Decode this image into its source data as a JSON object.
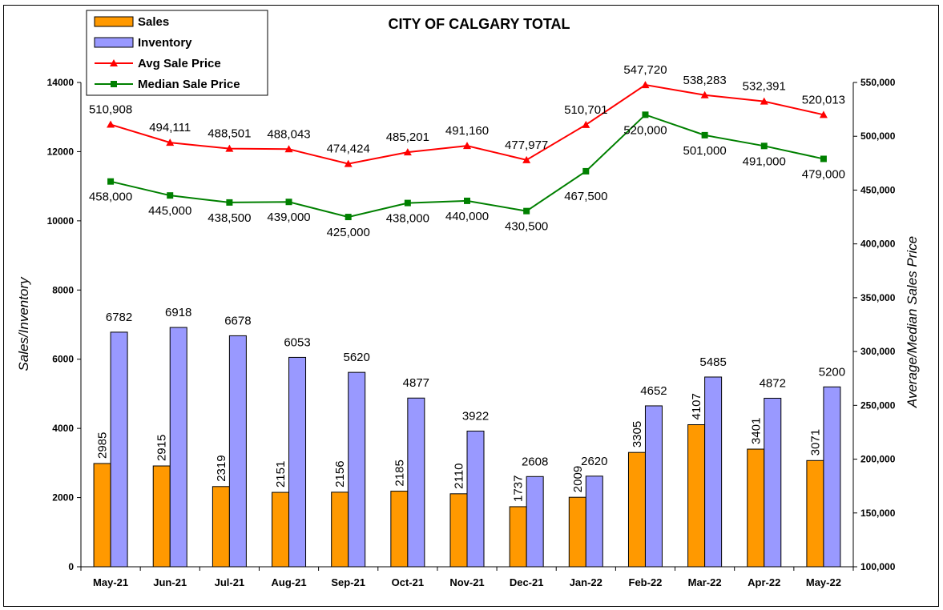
{
  "chart_data": {
    "type": "bar",
    "title": "CITY OF CALGARY TOTAL",
    "categories": [
      "May-21",
      "Jun-21",
      "Jul-21",
      "Aug-21",
      "Sep-21",
      "Oct-21",
      "Nov-21",
      "Dec-21",
      "Jan-22",
      "Feb-22",
      "Mar-22",
      "Apr-22",
      "May-22"
    ],
    "ylabel_left": "Sales/Inventory",
    "ylabel_right": "Average/Median Sales Price",
    "ylim_left": [
      0,
      14000
    ],
    "ylim_right": [
      100000,
      550000
    ],
    "yticks_left": [
      "0",
      "2000",
      "4000",
      "6000",
      "8000",
      "10000",
      "12000",
      "14000"
    ],
    "yticks_right": [
      "100,000",
      "150,000",
      "200,000",
      "250,000",
      "300,000",
      "350,000",
      "400,000",
      "450,000",
      "500,000",
      "550,000"
    ],
    "legend_position": "top-left",
    "grid": false,
    "series": [
      {
        "name": "Sales",
        "type": "bar",
        "axis": "left",
        "color": "#ff9900",
        "values": [
          2985,
          2915,
          2319,
          2151,
          2156,
          2185,
          2110,
          1737,
          2009,
          3305,
          4107,
          3401,
          3071
        ],
        "labels": [
          "2985",
          "2915",
          "2319",
          "2151",
          "2156",
          "2185",
          "2110",
          "1737",
          "2009",
          "3305",
          "4107",
          "3401",
          "3071"
        ]
      },
      {
        "name": "Inventory",
        "type": "bar",
        "axis": "left",
        "color": "#9999ff",
        "values": [
          6782,
          6918,
          6678,
          6053,
          5620,
          4877,
          3922,
          2608,
          2620,
          4652,
          5485,
          4872,
          5200
        ],
        "labels": [
          "6782",
          "6918",
          "6678",
          "6053",
          "5620",
          "4877",
          "3922",
          "2608",
          "2620",
          "4652",
          "5485",
          "4872",
          "5200"
        ]
      },
      {
        "name": "Avg Sale Price",
        "type": "line",
        "axis": "right",
        "color": "#ff0000",
        "marker": "triangle",
        "values": [
          510908,
          494111,
          488501,
          488043,
          474424,
          485201,
          491160,
          477977,
          510701,
          547720,
          538283,
          532391,
          520013
        ],
        "labels": [
          "510,908",
          "494,111",
          "488,501",
          "488,043",
          "474,424",
          "485,201",
          "491,160",
          "477,977",
          "510,701",
          "547,720",
          "538,283",
          "532,391",
          "520,013"
        ]
      },
      {
        "name": "Median Sale Price",
        "type": "line",
        "axis": "right",
        "color": "#008000",
        "marker": "square",
        "values": [
          458000,
          445000,
          438500,
          439000,
          425000,
          438000,
          440000,
          430500,
          467500,
          520000,
          501000,
          491000,
          479000
        ],
        "labels": [
          "458,000",
          "445,000",
          "438,500",
          "439,000",
          "425,000",
          "438,000",
          "440,000",
          "430,500",
          "467,500",
          "520,000",
          "501,000",
          "491,000",
          "479,000"
        ]
      }
    ]
  }
}
